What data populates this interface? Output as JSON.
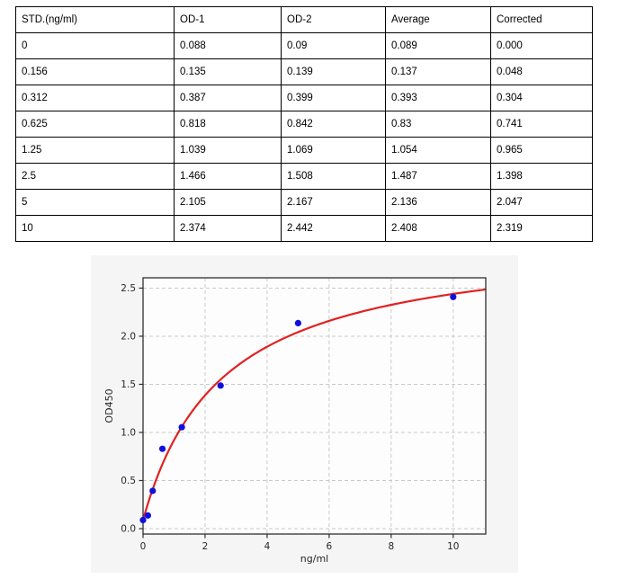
{
  "table": {
    "headers": [
      "STD.(ng/ml)",
      "OD-1",
      "OD-2",
      "Average",
      "Corrected"
    ],
    "rows": [
      [
        "0",
        "0.088",
        "0.09",
        "0.089",
        "0.000"
      ],
      [
        "0.156",
        "0.135",
        "0.139",
        "0.137",
        "0.048"
      ],
      [
        "0.312",
        "0.387",
        "0.399",
        "0.393",
        "0.304"
      ],
      [
        "0.625",
        "0.818",
        "0.842",
        "0.83",
        "0.741"
      ],
      [
        "1.25",
        "1.039",
        "1.069",
        "1.054",
        "0.965"
      ],
      [
        "2.5",
        "1.466",
        "1.508",
        "1.487",
        "1.398"
      ],
      [
        "5",
        "2.105",
        "2.167",
        "2.136",
        "2.047"
      ],
      [
        "10",
        "2.374",
        "2.442",
        "2.408",
        "2.319"
      ]
    ]
  },
  "chart_data": {
    "type": "scatter",
    "title": "",
    "xlabel": "ng/ml",
    "ylabel": "OD450",
    "x": [
      0,
      0.156,
      0.312,
      0.625,
      1.25,
      2.5,
      5,
      10
    ],
    "y": [
      0.089,
      0.137,
      0.393,
      0.83,
      1.054,
      1.487,
      2.136,
      2.408
    ],
    "xticks": [
      0,
      2,
      4,
      6,
      8,
      10
    ],
    "yticks": [
      0.0,
      0.5,
      1.0,
      1.5,
      2.0,
      2.5
    ],
    "xlim": [
      0,
      11.05
    ],
    "ylim": [
      -0.056,
      2.607
    ],
    "grid": true,
    "legend": "none",
    "fit_curve": {
      "formula": "y0 + a*x/(b+x)",
      "y0": 0.089,
      "a": 2.95,
      "b": 2.55
    },
    "colors": {
      "point": "#1010dd",
      "curve": "#e02222",
      "figure_bg": "#f5f5f5",
      "plot_bg": "#fdfdfd",
      "grid": "#c9c9c9",
      "frame": "#2e2e2e",
      "text": "#262626"
    }
  }
}
